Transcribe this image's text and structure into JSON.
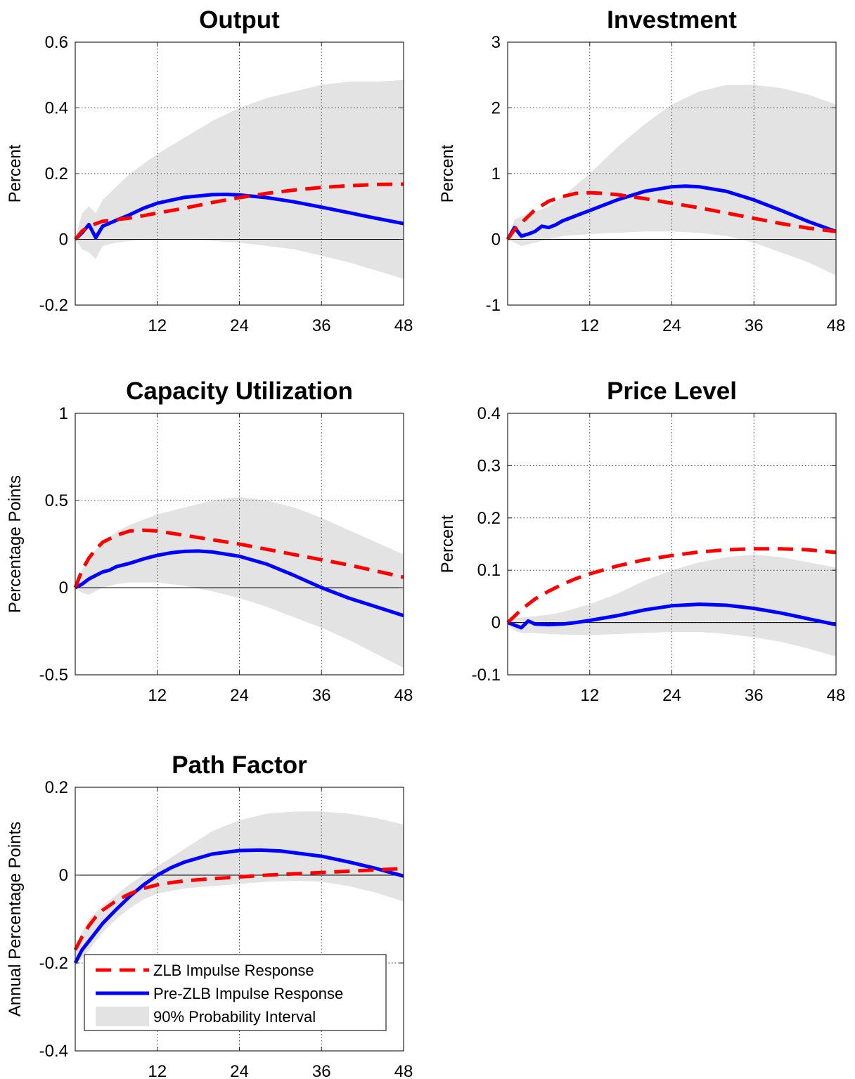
{
  "chart_data": [
    {
      "type": "line",
      "title": "Output",
      "ylabel": "Percent",
      "xlim": [
        0,
        48
      ],
      "ylim": [
        -0.2,
        0.6
      ],
      "xticks": [
        12,
        24,
        36,
        48
      ],
      "xtick_labels": [
        "12",
        "24",
        "36",
        "48"
      ],
      "yticks": [
        -0.2,
        0,
        0.2,
        0.4,
        0.6
      ],
      "ytick_labels": [
        "-0.2",
        "0",
        "0.2",
        "0.4",
        "0.6"
      ],
      "grid": true,
      "series": [
        {
          "key": "zlb",
          "style": "dashed",
          "color": "#ff0000",
          "x": [
            0,
            1,
            2,
            4,
            6,
            8,
            10,
            12,
            16,
            20,
            24,
            28,
            32,
            36,
            40,
            44,
            48
          ],
          "y": [
            0,
            0.025,
            0.04,
            0.055,
            0.06,
            0.065,
            0.072,
            0.08,
            0.095,
            0.112,
            0.127,
            0.14,
            0.15,
            0.158,
            0.163,
            0.167,
            0.168
          ]
        },
        {
          "key": "prezlb",
          "style": "solid",
          "color": "#0000ff",
          "x": [
            0,
            1,
            2,
            3,
            4,
            6,
            8,
            10,
            12,
            16,
            20,
            22,
            24,
            28,
            32,
            36,
            40,
            44,
            48
          ],
          "y": [
            0,
            0.02,
            0.045,
            0.005,
            0.04,
            0.058,
            0.075,
            0.095,
            0.11,
            0.128,
            0.136,
            0.137,
            0.135,
            0.127,
            0.114,
            0.098,
            0.081,
            0.064,
            0.048
          ]
        },
        {
          "key": "band",
          "style": "band",
          "color": "#e3e3e3",
          "x": [
            0,
            1,
            2,
            3,
            4,
            6,
            8,
            12,
            16,
            20,
            24,
            28,
            32,
            36,
            40,
            44,
            48
          ],
          "upper": [
            0,
            0.08,
            0.1,
            0.08,
            0.12,
            0.16,
            0.2,
            0.26,
            0.31,
            0.36,
            0.4,
            0.43,
            0.45,
            0.47,
            0.48,
            0.48,
            0.485
          ],
          "lower": [
            0,
            -0.03,
            -0.04,
            -0.06,
            -0.02,
            -0.01,
            -0.005,
            0,
            0,
            -0.005,
            -0.01,
            -0.02,
            -0.03,
            -0.05,
            -0.07,
            -0.095,
            -0.12
          ]
        }
      ]
    },
    {
      "type": "line",
      "title": "Investment",
      "ylabel": "Percent",
      "xlim": [
        0,
        48
      ],
      "ylim": [
        -1,
        3
      ],
      "xticks": [
        12,
        24,
        36,
        48
      ],
      "xtick_labels": [
        "12",
        "24",
        "36",
        "48"
      ],
      "yticks": [
        -1,
        0,
        1,
        2,
        3
      ],
      "ytick_labels": [
        "-1",
        "0",
        "1",
        "2",
        "3"
      ],
      "grid": true,
      "series": [
        {
          "key": "zlb",
          "style": "dashed",
          "color": "#ff0000",
          "x": [
            0,
            1,
            2,
            4,
            6,
            8,
            10,
            12,
            14,
            16,
            20,
            24,
            28,
            32,
            36,
            40,
            44,
            48
          ],
          "y": [
            0,
            0.15,
            0.25,
            0.45,
            0.58,
            0.65,
            0.7,
            0.71,
            0.7,
            0.68,
            0.62,
            0.55,
            0.48,
            0.4,
            0.32,
            0.24,
            0.17,
            0.12
          ]
        },
        {
          "key": "prezlb",
          "style": "solid",
          "color": "#0000ff",
          "x": [
            0,
            1,
            2,
            3,
            4,
            5,
            6,
            7,
            8,
            9,
            10,
            12,
            16,
            20,
            24,
            26,
            28,
            32,
            36,
            40,
            44,
            48
          ],
          "y": [
            0,
            0.18,
            0.05,
            0.08,
            0.12,
            0.2,
            0.18,
            0.22,
            0.28,
            0.32,
            0.36,
            0.44,
            0.6,
            0.73,
            0.8,
            0.81,
            0.8,
            0.73,
            0.6,
            0.44,
            0.27,
            0.12
          ]
        },
        {
          "key": "band",
          "style": "band",
          "color": "#e3e3e3",
          "x": [
            0,
            1,
            2,
            4,
            6,
            8,
            12,
            16,
            20,
            24,
            28,
            32,
            36,
            40,
            44,
            48
          ],
          "upper": [
            0,
            0.3,
            0.35,
            0.42,
            0.5,
            0.65,
            1.0,
            1.4,
            1.75,
            2.05,
            2.25,
            2.35,
            2.35,
            2.3,
            2.2,
            2.05
          ],
          "lower": [
            0,
            -0.05,
            -0.1,
            -0.05,
            0,
            0.05,
            0.08,
            0.1,
            0.12,
            0.12,
            0.1,
            0.05,
            -0.05,
            -0.2,
            -0.35,
            -0.55
          ]
        }
      ]
    },
    {
      "type": "line",
      "title": "Capacity Utilization",
      "ylabel": "Percentage Points",
      "xlim": [
        0,
        48
      ],
      "ylim": [
        -0.5,
        1
      ],
      "xticks": [
        12,
        24,
        36,
        48
      ],
      "xtick_labels": [
        "12",
        "24",
        "36",
        "48"
      ],
      "yticks": [
        -0.5,
        0,
        0.5,
        1
      ],
      "ytick_labels": [
        "-0.5",
        "0",
        "0.5",
        "1"
      ],
      "grid": true,
      "series": [
        {
          "key": "zlb",
          "style": "dashed",
          "color": "#ff0000",
          "x": [
            0,
            1,
            2,
            3,
            4,
            6,
            8,
            10,
            12,
            16,
            20,
            24,
            28,
            32,
            36,
            40,
            44,
            48
          ],
          "y": [
            0,
            0.1,
            0.17,
            0.22,
            0.26,
            0.3,
            0.325,
            0.33,
            0.325,
            0.3,
            0.275,
            0.25,
            0.22,
            0.19,
            0.16,
            0.13,
            0.095,
            0.06
          ]
        },
        {
          "key": "prezlb",
          "style": "solid",
          "color": "#0000ff",
          "x": [
            0,
            1,
            2,
            3,
            4,
            5,
            6,
            8,
            10,
            12,
            14,
            16,
            18,
            20,
            24,
            28,
            32,
            36,
            40,
            44,
            48
          ],
          "y": [
            0,
            0.02,
            0.05,
            0.07,
            0.09,
            0.1,
            0.12,
            0.14,
            0.165,
            0.185,
            0.2,
            0.208,
            0.21,
            0.205,
            0.18,
            0.135,
            0.07,
            0.0,
            -0.06,
            -0.11,
            -0.16
          ]
        },
        {
          "key": "band",
          "style": "band",
          "color": "#e3e3e3",
          "x": [
            0,
            1,
            2,
            4,
            6,
            8,
            12,
            16,
            20,
            24,
            28,
            32,
            36,
            40,
            44,
            48
          ],
          "upper": [
            0,
            0.1,
            0.17,
            0.26,
            0.32,
            0.36,
            0.42,
            0.46,
            0.5,
            0.52,
            0.5,
            0.46,
            0.4,
            0.33,
            0.26,
            0.19
          ],
          "lower": [
            0,
            -0.03,
            -0.04,
            0,
            0.02,
            0.03,
            0.03,
            0.01,
            -0.02,
            -0.06,
            -0.11,
            -0.17,
            -0.23,
            -0.3,
            -0.38,
            -0.46
          ]
        }
      ]
    },
    {
      "type": "line",
      "title": "Price Level",
      "ylabel": "Percent",
      "xlim": [
        0,
        48
      ],
      "ylim": [
        -0.1,
        0.4
      ],
      "xticks": [
        12,
        24,
        36,
        48
      ],
      "xtick_labels": [
        "12",
        "24",
        "36",
        "48"
      ],
      "yticks": [
        -0.1,
        0,
        0.1,
        0.2,
        0.3,
        0.4
      ],
      "ytick_labels": [
        "-0.1",
        "0",
        "0.1",
        "0.2",
        "0.3",
        "0.4"
      ],
      "grid": true,
      "series": [
        {
          "key": "zlb",
          "style": "dashed",
          "color": "#ff0000",
          "x": [
            0,
            1,
            2,
            4,
            6,
            8,
            10,
            12,
            16,
            20,
            24,
            28,
            32,
            36,
            40,
            44,
            48
          ],
          "y": [
            0,
            0.012,
            0.025,
            0.045,
            0.06,
            0.073,
            0.084,
            0.093,
            0.108,
            0.12,
            0.128,
            0.135,
            0.139,
            0.141,
            0.141,
            0.139,
            0.134
          ]
        },
        {
          "key": "prezlb",
          "style": "solid",
          "color": "#0000ff",
          "x": [
            0,
            1,
            2,
            3,
            4,
            6,
            8,
            10,
            12,
            16,
            20,
            24,
            28,
            32,
            36,
            40,
            44,
            48
          ],
          "y": [
            0,
            -0.005,
            -0.01,
            0.003,
            -0.003,
            -0.004,
            -0.003,
            0.0,
            0.004,
            0.013,
            0.024,
            0.032,
            0.035,
            0.033,
            0.027,
            0.018,
            0.007,
            -0.004
          ]
        },
        {
          "key": "band",
          "style": "band",
          "color": "#e3e3e3",
          "x": [
            0,
            1,
            2,
            4,
            6,
            8,
            12,
            16,
            20,
            24,
            28,
            32,
            36,
            40,
            44,
            48
          ],
          "upper": [
            0,
            0.008,
            0.01,
            0.012,
            0.015,
            0.02,
            0.035,
            0.055,
            0.08,
            0.1,
            0.115,
            0.125,
            0.13,
            0.125,
            0.115,
            0.105
          ],
          "lower": [
            0,
            -0.015,
            -0.02,
            -0.02,
            -0.022,
            -0.023,
            -0.024,
            -0.022,
            -0.02,
            -0.018,
            -0.018,
            -0.022,
            -0.028,
            -0.037,
            -0.05,
            -0.065
          ]
        }
      ]
    },
    {
      "type": "line",
      "title": "Path Factor",
      "ylabel": "Annual Percentage Points",
      "xlim": [
        0,
        48
      ],
      "ylim": [
        -0.4,
        0.2
      ],
      "xticks": [
        12,
        24,
        36,
        48
      ],
      "xtick_labels": [
        "12",
        "24",
        "36",
        "48"
      ],
      "yticks": [
        -0.4,
        -0.2,
        0,
        0.2
      ],
      "ytick_labels": [
        "-0.4",
        "-0.2",
        "0",
        "0.2"
      ],
      "grid": true,
      "series": [
        {
          "key": "zlb",
          "style": "dashed",
          "color": "#ff0000",
          "x": [
            0,
            1,
            2,
            3,
            4,
            6,
            8,
            10,
            12,
            14,
            16,
            20,
            24,
            28,
            32,
            36,
            40,
            44,
            48
          ],
          "y": [
            -0.17,
            -0.14,
            -0.115,
            -0.095,
            -0.08,
            -0.058,
            -0.042,
            -0.03,
            -0.022,
            -0.017,
            -0.013,
            -0.008,
            -0.004,
            0.0,
            0.003,
            0.006,
            0.009,
            0.012,
            0.015
          ]
        },
        {
          "key": "prezlb",
          "style": "solid",
          "color": "#0000ff",
          "x": [
            0,
            1,
            2,
            3,
            4,
            6,
            8,
            10,
            12,
            14,
            16,
            20,
            24,
            27,
            30,
            36,
            40,
            44,
            48
          ],
          "y": [
            -0.2,
            -0.17,
            -0.15,
            -0.13,
            -0.11,
            -0.078,
            -0.048,
            -0.022,
            0.0,
            0.017,
            0.03,
            0.048,
            0.056,
            0.057,
            0.055,
            0.043,
            0.03,
            0.015,
            -0.002
          ]
        },
        {
          "key": "band",
          "style": "band",
          "color": "#e3e3e3",
          "x": [
            0,
            1,
            2,
            4,
            6,
            8,
            10,
            12,
            16,
            20,
            24,
            28,
            32,
            36,
            40,
            44,
            48
          ],
          "upper": [
            -0.17,
            -0.13,
            -0.1,
            -0.07,
            -0.045,
            -0.02,
            0.0,
            0.02,
            0.06,
            0.1,
            0.125,
            0.14,
            0.145,
            0.145,
            0.14,
            0.13,
            0.115
          ],
          "lower": [
            -0.2,
            -0.19,
            -0.17,
            -0.13,
            -0.1,
            -0.075,
            -0.055,
            -0.042,
            -0.03,
            -0.025,
            -0.02,
            -0.015,
            -0.013,
            -0.015,
            -0.025,
            -0.04,
            -0.06
          ]
        }
      ]
    }
  ],
  "legend": {
    "placement": "lower-left",
    "entries": [
      {
        "key": "zlb",
        "label": "ZLB Impulse Response"
      },
      {
        "key": "prezlb",
        "label": "Pre-ZLB Impulse Response"
      },
      {
        "key": "band",
        "label": "90% Probability Interval"
      }
    ]
  }
}
